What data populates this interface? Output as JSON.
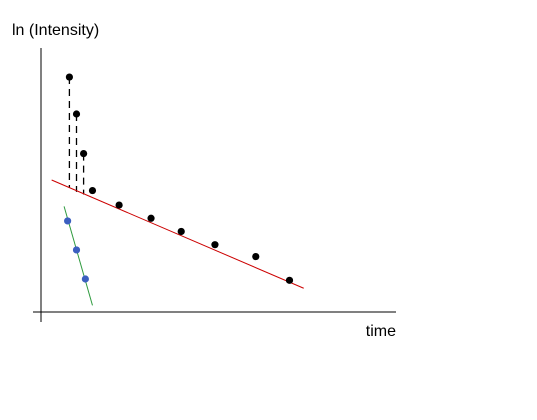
{
  "chart_data": {
    "type": "scatter",
    "title": "",
    "xlabel": "time",
    "ylabel": "ln (Intensity)",
    "xlim": [
      0,
      10
    ],
    "ylim": [
      0,
      10
    ],
    "grid": false,
    "legend": "none",
    "axis_color": "#000000",
    "series": [
      {
        "marker_color": "#000000",
        "points": [
          {
            "x": 0.8,
            "y": 8.9
          },
          {
            "x": 1.0,
            "y": 7.5
          },
          {
            "x": 1.2,
            "y": 6.0
          },
          {
            "x": 1.45,
            "y": 4.6
          },
          {
            "x": 2.2,
            "y": 4.05
          },
          {
            "x": 3.1,
            "y": 3.55
          },
          {
            "x": 3.95,
            "y": 3.05
          },
          {
            "x": 4.9,
            "y": 2.55
          },
          {
            "x": 6.05,
            "y": 2.1
          },
          {
            "x": 7.0,
            "y": 1.2
          }
        ]
      },
      {
        "marker_color": "#3b5fc0",
        "points": [
          {
            "x": 0.75,
            "y": 3.45
          },
          {
            "x": 1.0,
            "y": 2.35
          },
          {
            "x": 1.25,
            "y": 1.25
          }
        ]
      }
    ],
    "fit_lines": [
      {
        "color": "#cc0000",
        "from": {
          "x": 0.3,
          "y": 5.0
        },
        "to": {
          "x": 7.4,
          "y": 0.9
        }
      },
      {
        "color": "#2e9a3e",
        "from": {
          "x": 0.65,
          "y": 4.0
        },
        "to": {
          "x": 1.45,
          "y": 0.25
        }
      }
    ],
    "residual_lines": [
      {
        "color": "#000000",
        "style": "dashed",
        "from": {
          "x": 0.8,
          "y": 8.9
        },
        "to": {
          "x": 0.8,
          "y": 4.7
        }
      },
      {
        "color": "#000000",
        "style": "dashed",
        "from": {
          "x": 1.0,
          "y": 7.5
        },
        "to": {
          "x": 1.0,
          "y": 4.55
        }
      },
      {
        "color": "#000000",
        "style": "dashed",
        "from": {
          "x": 1.2,
          "y": 6.0
        },
        "to": {
          "x": 1.2,
          "y": 4.45
        }
      }
    ]
  }
}
